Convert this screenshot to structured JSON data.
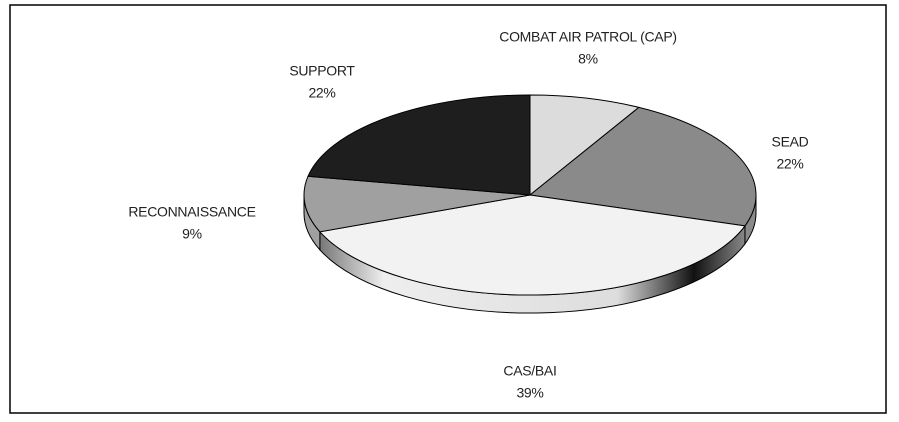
{
  "chart_data": {
    "type": "pie",
    "categories": [
      "COMBAT AIR PATROL (CAP)",
      "SEAD",
      "CAS/BAI",
      "RECONNAISSANCE",
      "SUPPORT"
    ],
    "values": [
      8,
      22,
      39,
      9,
      22
    ],
    "value_labels": [
      "8%",
      "22%",
      "39%",
      "9%",
      "22%"
    ],
    "colors": [
      "#dcdcdc",
      "#8a8a8a",
      "#f2f2f2",
      "#a0a0a0",
      "#1e1e1e"
    ]
  }
}
